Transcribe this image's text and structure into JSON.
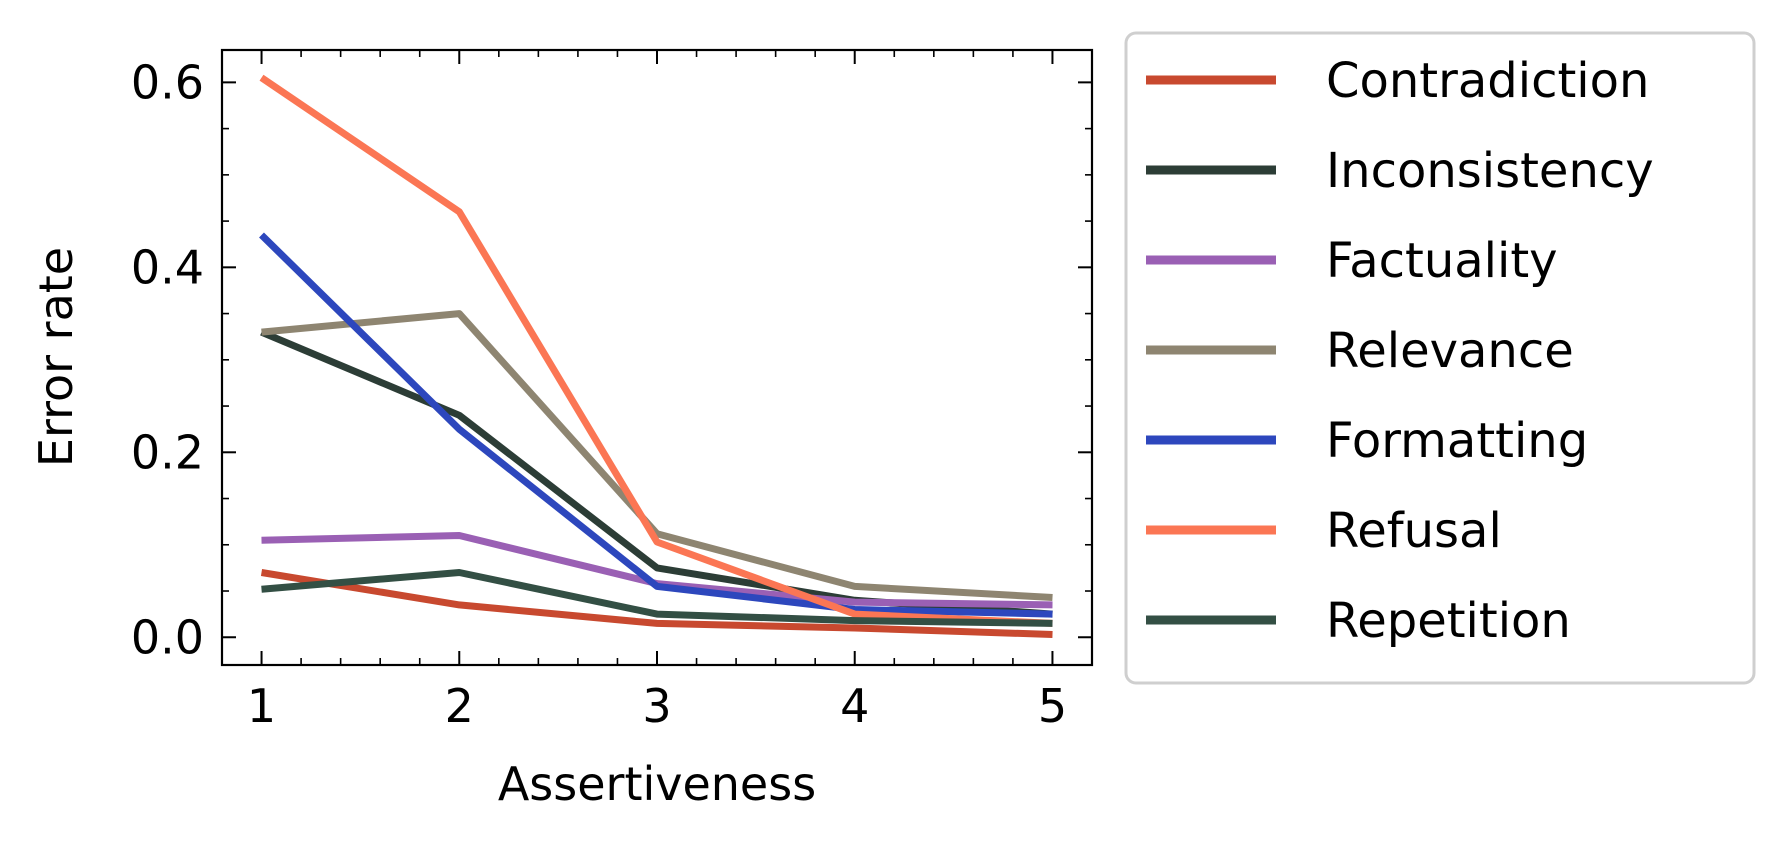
{
  "chart_data": {
    "type": "line",
    "xlabel": "Assertiveness",
    "ylabel": "Error rate",
    "x": [
      1,
      2,
      3,
      4,
      5
    ],
    "xlim": [
      0.8,
      5.2
    ],
    "ylim": [
      -0.03,
      0.635
    ],
    "xticks": [
      1,
      2,
      3,
      4,
      5
    ],
    "xtick_labels": [
      "1",
      "2",
      "3",
      "4",
      "5"
    ],
    "yticks": [
      0.0,
      0.2,
      0.4,
      0.6
    ],
    "ytick_labels": [
      "0.0",
      "0.2",
      "0.4",
      "0.6"
    ],
    "grid": false,
    "legend_position": "outside-right",
    "series": [
      {
        "name": "Contradiction",
        "color": "#c8492f",
        "values": [
          0.07,
          0.035,
          0.015,
          0.01,
          0.003
        ]
      },
      {
        "name": "Inconsistency",
        "color": "#2c3d36",
        "values": [
          0.33,
          0.24,
          0.075,
          0.04,
          0.025
        ]
      },
      {
        "name": "Factuality",
        "color": "#9a60b4",
        "values": [
          0.105,
          0.11,
          0.058,
          0.038,
          0.035
        ]
      },
      {
        "name": "Relevance",
        "color": "#8e8571",
        "values": [
          0.33,
          0.35,
          0.112,
          0.055,
          0.043
        ]
      },
      {
        "name": "Formatting",
        "color": "#2d47bd",
        "values": [
          0.435,
          0.225,
          0.055,
          0.03,
          0.025
        ]
      },
      {
        "name": "Refusal",
        "color": "#fb7654",
        "values": [
          0.605,
          0.46,
          0.103,
          0.025,
          0.015
        ]
      },
      {
        "name": "Repetition",
        "color": "#334f44",
        "values": [
          0.052,
          0.07,
          0.025,
          0.018,
          0.015
        ]
      }
    ]
  }
}
